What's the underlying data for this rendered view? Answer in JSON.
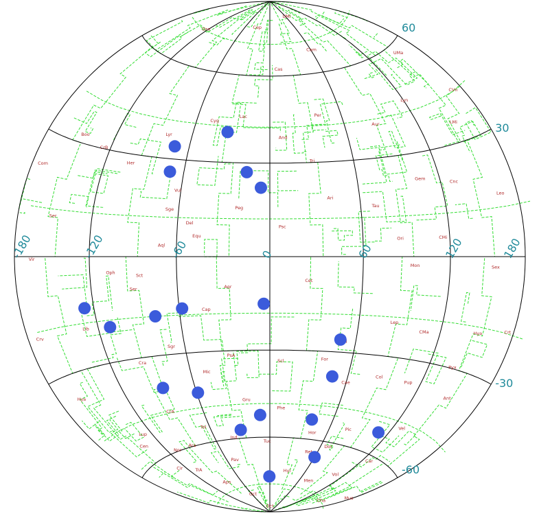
{
  "chart_data": {
    "type": "scatter",
    "title": "",
    "xlabel": "",
    "ylabel": "",
    "projection": "hammer-aitoff",
    "xlim": [
      -180,
      180
    ],
    "ylim": [
      -90,
      90
    ],
    "longitude_tick_labels": [
      {
        "value": -180,
        "label": "-180"
      },
      {
        "value": -120,
        "label": "-120"
      },
      {
        "value": -60,
        "label": "-60"
      },
      {
        "value": 0,
        "label": "0"
      },
      {
        "value": 60,
        "label": "60"
      },
      {
        "value": 120,
        "label": "120"
      },
      {
        "value": 180,
        "label": "180"
      }
    ],
    "latitude_tick_labels": [
      {
        "value": 60,
        "label": "60"
      },
      {
        "value": 30,
        "label": "30"
      },
      {
        "value": -30,
        "label": "-30"
      },
      {
        "value": -60,
        "label": "-60"
      }
    ],
    "grid": true,
    "colors": {
      "grid": "#000000",
      "boundaries": "#33dd33",
      "points": "#3b5bdb",
      "tick_labels": "#1f8a9a",
      "constellation_labels": "#b02a2a"
    },
    "series": [
      {
        "points": [
          {
            "lon": -33,
            "lat": 40
          },
          {
            "lon": -71,
            "lat": 34
          },
          {
            "lon": -70,
            "lat": 26
          },
          {
            "lon": -16,
            "lat": 27
          },
          {
            "lon": -6,
            "lat": 22
          },
          {
            "lon": -4,
            "lat": -15
          },
          {
            "lon": -58,
            "lat": -16
          },
          {
            "lon": -77,
            "lat": -18
          },
          {
            "lon": -127,
            "lat": -14
          },
          {
            "lon": -111,
            "lat": -20
          },
          {
            "lon": 49,
            "lat": -26
          },
          {
            "lon": 48,
            "lat": -38
          },
          {
            "lon": -86,
            "lat": -40
          },
          {
            "lon": -59,
            "lat": -43
          },
          {
            "lon": -9,
            "lat": -52
          },
          {
            "lon": 40,
            "lat": -53
          },
          {
            "lon": -30,
            "lat": -57
          },
          {
            "lon": 110,
            "lat": -53
          },
          {
            "lon": -1,
            "lat": -75
          },
          {
            "lon": 60,
            "lat": -66
          }
        ]
      }
    ],
    "constellation_labels": [
      {
        "text": "Dra",
        "lon": -120,
        "lat": 72
      },
      {
        "text": "UMa",
        "lon": 155,
        "lat": 57
      },
      {
        "text": "UMi",
        "lon": 60,
        "lat": 82
      },
      {
        "text": "Cep",
        "lon": -30,
        "lat": 78
      },
      {
        "text": "Cas",
        "lon": 10,
        "lat": 62
      },
      {
        "text": "Cam",
        "lon": 60,
        "lat": 68
      },
      {
        "text": "Lyn",
        "lon": 120,
        "lat": 45
      },
      {
        "text": "Aur",
        "lon": 85,
        "lat": 40
      },
      {
        "text": "Per",
        "lon": 40,
        "lat": 45
      },
      {
        "text": "And",
        "lon": 10,
        "lat": 38
      },
      {
        "text": "Lac",
        "lon": -22,
        "lat": 45
      },
      {
        "text": "Cyg",
        "lon": -45,
        "lat": 43
      },
      {
        "text": "Lyr",
        "lon": -78,
        "lat": 37
      },
      {
        "text": "CVn",
        "lon": 170,
        "lat": 42
      },
      {
        "text": "Boo",
        "lon": -145,
        "lat": 32
      },
      {
        "text": "CrB",
        "lon": -125,
        "lat": 30
      },
      {
        "text": "Her",
        "lon": -100,
        "lat": 27
      },
      {
        "text": "Com",
        "lon": -170,
        "lat": 22
      },
      {
        "text": "LMi",
        "lon": 150,
        "lat": 35
      },
      {
        "text": "Tri",
        "lon": 30,
        "lat": 30
      },
      {
        "text": "Vul",
        "lon": -62,
        "lat": 20
      },
      {
        "text": "Sge",
        "lon": -66,
        "lat": 14
      },
      {
        "text": "Peg",
        "lon": -20,
        "lat": 15
      },
      {
        "text": "Ari",
        "lon": 40,
        "lat": 18
      },
      {
        "text": "Tau",
        "lon": 70,
        "lat": 15
      },
      {
        "text": "Gem",
        "lon": 105,
        "lat": 22
      },
      {
        "text": "Cnc",
        "lon": 130,
        "lat": 20
      },
      {
        "text": "Leo",
        "lon": 165,
        "lat": 15
      },
      {
        "text": "Ser",
        "lon": -150,
        "lat": 10
      },
      {
        "text": "Del",
        "lon": -52,
        "lat": 10
      },
      {
        "text": "Equ",
        "lon": -47,
        "lat": 6
      },
      {
        "text": "Psc",
        "lon": 8,
        "lat": 9
      },
      {
        "text": "Ori",
        "lon": 85,
        "lat": 5
      },
      {
        "text": "CMi",
        "lon": 115,
        "lat": 5
      },
      {
        "text": "Aql",
        "lon": -70,
        "lat": 3
      },
      {
        "text": "Vir",
        "lon": -165,
        "lat": -1
      },
      {
        "text": "Oph",
        "lon": -105,
        "lat": -5
      },
      {
        "text": "Sct",
        "lon": -85,
        "lat": -6
      },
      {
        "text": "Mon",
        "lon": 95,
        "lat": -3
      },
      {
        "text": "Sex",
        "lon": 155,
        "lat": -3
      },
      {
        "text": "Ser",
        "lon": -90,
        "lat": -10
      },
      {
        "text": "Aqr",
        "lon": -27,
        "lat": -10
      },
      {
        "text": "Cet",
        "lon": 25,
        "lat": -8
      },
      {
        "text": "Lib",
        "lon": -130,
        "lat": -20
      },
      {
        "text": "Cap",
        "lon": -42,
        "lat": -17
      },
      {
        "text": "Crv",
        "lon": -170,
        "lat": -20
      },
      {
        "text": "Sgr",
        "lon": -70,
        "lat": -28
      },
      {
        "text": "Eri",
        "lon": 52,
        "lat": -27
      },
      {
        "text": "Lep",
        "lon": 85,
        "lat": -20
      },
      {
        "text": "CMa",
        "lon": 108,
        "lat": -22
      },
      {
        "text": "Hya",
        "lon": 150,
        "lat": -20
      },
      {
        "text": "Crt",
        "lon": 175,
        "lat": -18
      },
      {
        "text": "Cra",
        "lon": -95,
        "lat": -32
      },
      {
        "text": "PsA",
        "lon": -28,
        "lat": -32
      },
      {
        "text": "Scl",
        "lon": 8,
        "lat": -34
      },
      {
        "text": "For",
        "lon": 40,
        "lat": -33
      },
      {
        "text": "Mic",
        "lon": -48,
        "lat": -37
      },
      {
        "text": "Hya",
        "lon": -160,
        "lat": -37
      },
      {
        "text": "Col",
        "lon": 85,
        "lat": -37
      },
      {
        "text": "Cae",
        "lon": 60,
        "lat": -40
      },
      {
        "text": "Pup",
        "lon": 110,
        "lat": -37
      },
      {
        "text": "Pyx",
        "lon": 140,
        "lat": -30
      },
      {
        "text": "Ant",
        "lon": 150,
        "lat": -38
      },
      {
        "text": "Gru",
        "lon": -20,
        "lat": -47
      },
      {
        "text": "Phe",
        "lon": 10,
        "lat": -50
      },
      {
        "text": "CrA",
        "lon": -90,
        "lat": -48
      },
      {
        "text": "Lup",
        "lon": -130,
        "lat": -52
      },
      {
        "text": "Cen",
        "lon": -140,
        "lat": -55
      },
      {
        "text": "Tel",
        "lon": -67,
        "lat": -55
      },
      {
        "text": "Nor",
        "lon": -110,
        "lat": -60
      },
      {
        "text": "Ara",
        "lon": -90,
        "lat": -60
      },
      {
        "text": "Hor",
        "lon": 45,
        "lat": -58
      },
      {
        "text": "Pic",
        "lon": 80,
        "lat": -55
      },
      {
        "text": "Dor",
        "lon": 70,
        "lat": -62
      },
      {
        "text": "Vel",
        "lon": 130,
        "lat": -50
      },
      {
        "text": "Car",
        "lon": 130,
        "lat": -62
      },
      {
        "text": "Ind",
        "lon": -40,
        "lat": -60
      },
      {
        "text": "Tuc",
        "lon": -3,
        "lat": -62
      },
      {
        "text": "Ret",
        "lon": 50,
        "lat": -65
      },
      {
        "text": "Hyi",
        "lon": 30,
        "lat": -73
      },
      {
        "text": "Vol",
        "lon": 110,
        "lat": -70
      },
      {
        "text": "Men",
        "lon": 80,
        "lat": -75
      },
      {
        "text": "Pav",
        "lon": -50,
        "lat": -68
      },
      {
        "text": "Aps",
        "lon": -90,
        "lat": -75
      },
      {
        "text": "TrA",
        "lon": -110,
        "lat": -68
      },
      {
        "text": "Cir",
        "lon": -130,
        "lat": -65
      },
      {
        "text": "Mus",
        "lon": 180,
        "lat": -72
      },
      {
        "text": "Cha",
        "lon": 160,
        "lat": -78
      },
      {
        "text": "Oct",
        "lon": 0,
        "lat": -88
      },
      {
        "text": "Oct",
        "lon": -60,
        "lat": -82
      }
    ]
  }
}
